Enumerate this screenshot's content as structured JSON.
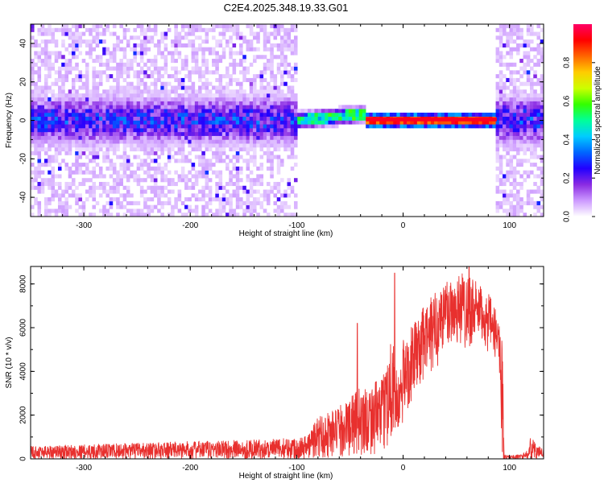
{
  "page_title": "C2E4.2025.348.19.33.G01",
  "chart_data": [
    {
      "type": "heatmap",
      "xlabel": "Height of straight line (km)",
      "ylabel": "Frequency (Hz)",
      "xlim": [
        -350,
        132
      ],
      "ylim": [
        -50,
        50
      ],
      "x_ticks": [
        -300,
        -200,
        -100,
        0,
        100
      ],
      "y_ticks": [
        -40,
        -20,
        0,
        20,
        40
      ],
      "colorbar": {
        "label": "Normalized spectral amplitude",
        "range": [
          0,
          1
        ],
        "ticks": [
          "0.0",
          "0.2",
          "0.4",
          "0.6",
          "0.8"
        ],
        "colors": [
          "#ffffff",
          "#cc99ff",
          "#8a2be2",
          "#2200ff",
          "#0066ff",
          "#00ccff",
          "#00ff99",
          "#33ff00",
          "#ccff00",
          "#ffcc00",
          "#ff6600",
          "#ff0000",
          "#ff0066"
        ]
      },
      "regions": [
        {
          "x": [
            -350,
            -98
          ],
          "description_values": {
            "noise_spread_hz": 50,
            "core_halfwidth_hz": 8,
            "peak_amplitude": 0.3
          }
        },
        {
          "x": [
            -98,
            -35
          ],
          "center_freq_start_hz": 0,
          "center_freq_end_hz": 4,
          "peak_amplitude": 0.5
        },
        {
          "x": [
            -35,
            88
          ],
          "center_freq_hz": 0.5,
          "peak_amplitude": 0.95
        },
        {
          "x": [
            88,
            132
          ],
          "noise_spread_hz": 50,
          "core_halfwidth_hz": 7,
          "peak_amplitude": 0.25
        }
      ]
    },
    {
      "type": "line",
      "xlabel": "Height of straight line (km)",
      "ylabel": "SNR (10 * v/v)",
      "xlim": [
        -350,
        132
      ],
      "ylim": [
        0,
        8800
      ],
      "x_ticks": [
        -300,
        -200,
        -100,
        0,
        100
      ],
      "y_ticks": [
        0,
        2000,
        4000,
        6000,
        8000
      ],
      "color": "#e8302e",
      "envelope": {
        "x": [
          -350,
          -300,
          -200,
          -120,
          -100,
          -90,
          -80,
          -70,
          -60,
          -50,
          -40,
          -30,
          -20,
          -15,
          -10,
          -5,
          0,
          10,
          20,
          30,
          40,
          50,
          60,
          70,
          80,
          90,
          93,
          95,
          100,
          110,
          118,
          120,
          125,
          132
        ],
        "y_low": [
          0,
          0,
          0,
          0,
          0,
          0,
          0,
          0,
          50,
          100,
          150,
          200,
          300,
          600,
          800,
          900,
          1500,
          3000,
          3500,
          4000,
          5000,
          5200,
          5000,
          5500,
          4800,
          4500,
          0,
          0,
          0,
          0,
          0,
          0,
          0,
          0
        ],
        "y_high": [
          600,
          650,
          800,
          900,
          1000,
          1100,
          2000,
          2200,
          2400,
          2800,
          3300,
          3500,
          3600,
          4700,
          6200,
          3500,
          5500,
          6200,
          7000,
          7700,
          8300,
          8500,
          8700,
          8000,
          7600,
          6500,
          6000,
          200,
          150,
          200,
          400,
          1200,
          600,
          500
        ]
      },
      "spikes": [
        {
          "x": -8,
          "y": 8500
        },
        {
          "x": -43,
          "y": 6200
        },
        {
          "x": 62,
          "y": 8800
        }
      ]
    }
  ]
}
